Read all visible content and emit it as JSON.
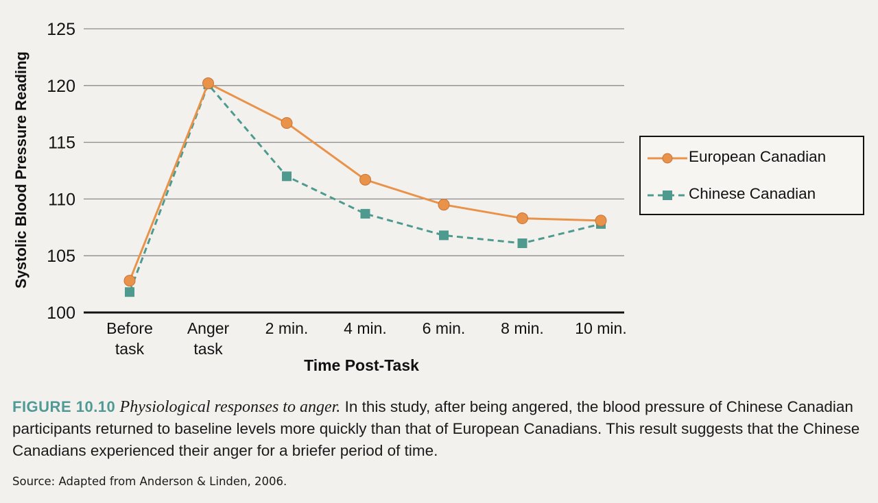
{
  "chart_data": {
    "type": "line",
    "categories": [
      "Before task",
      "Anger task",
      "2 min.",
      "4 min.",
      "6 min.",
      "8 min.",
      "10 min."
    ],
    "category_lines": [
      [
        "Before",
        "task"
      ],
      [
        "Anger",
        "task"
      ],
      [
        "2 min."
      ],
      [
        "4 min."
      ],
      [
        "6 min."
      ],
      [
        "8 min."
      ],
      [
        "10 min."
      ]
    ],
    "series": [
      {
        "name": "European Canadian",
        "values": [
          102.8,
          120.2,
          116.7,
          111.7,
          109.5,
          108.3,
          108.1
        ],
        "color": "#e8924a",
        "marker": "circle",
        "dash": false
      },
      {
        "name": "Chinese Canadian",
        "values": [
          101.8,
          120.1,
          112.0,
          108.7,
          106.8,
          106.1,
          107.8
        ],
        "color": "#4f9a8e",
        "marker": "square",
        "dash": true
      }
    ],
    "xlabel": "Time Post-Task",
    "ylabel": "Systolic Blood Pressure Reading",
    "yticks": [
      100,
      105,
      110,
      115,
      120,
      125
    ],
    "ylim": [
      100,
      125
    ],
    "grid": true,
    "legend_position": "right"
  },
  "caption": {
    "label": "FIGURE 10.10",
    "title": "Physiological responses to anger.",
    "text": "In this study, after being angered, the blood pressure of Chinese Canadian participants returned to baseline levels more quickly than that of European Canadians. This result suggests that the Chinese Canadians experienced their anger for a briefer period of time.",
    "source": "Source: Adapted from Anderson & Linden, 2006."
  }
}
